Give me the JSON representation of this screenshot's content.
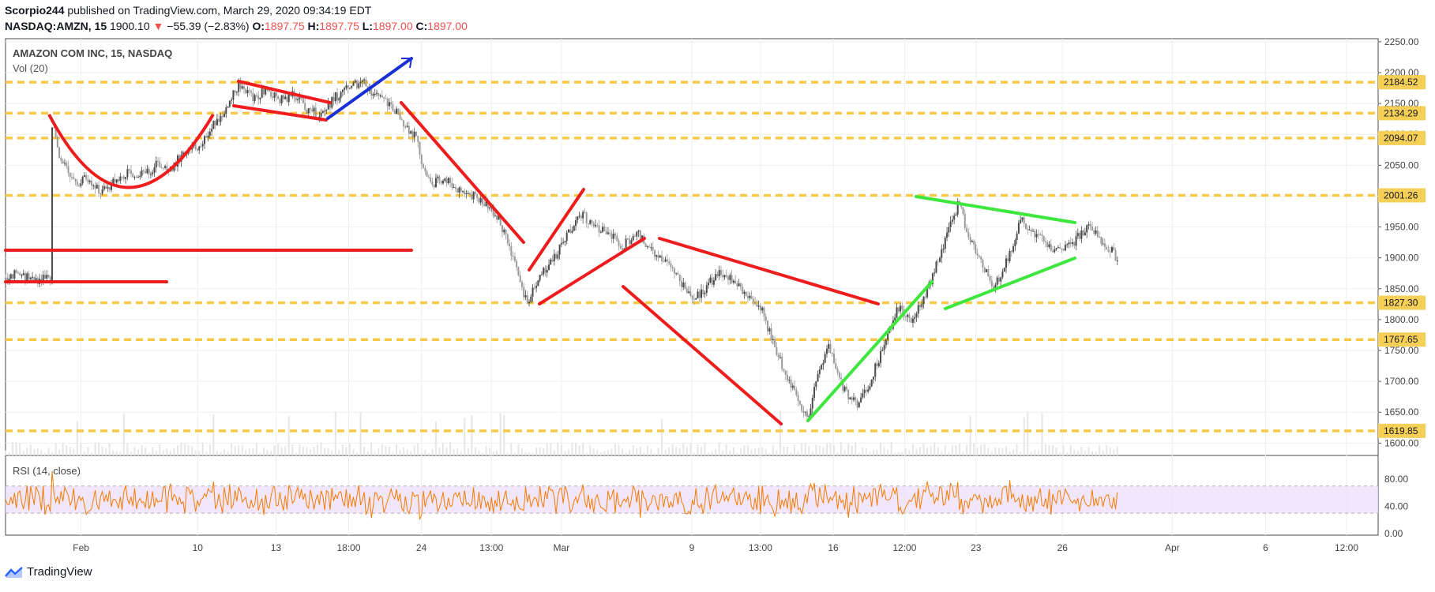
{
  "header": {
    "author": "Scorpio244",
    "published_text": "published on TradingView.com, March 29, 2020 09:34:19 EDT",
    "symbol": "NASDAQ:AMZN, 15",
    "last": "1900.10",
    "change": "−55.39 (−2.83%)",
    "o_label": "O:",
    "o_val": "1897.75",
    "h_label": "H:",
    "h_val": "1897.75",
    "l_label": "L:",
    "l_val": "1897.00",
    "c_label": "C:",
    "c_val": "1897.00"
  },
  "footer": {
    "brand": "TradingView"
  },
  "chart_data": {
    "type": "candlestick",
    "title": "AMAZON COM INC, 15, NASDAQ",
    "volume_label": "Vol (20)",
    "ylim": [
      1580,
      2255
    ],
    "y_ticks": [
      1600,
      1650,
      1700,
      1750,
      1800,
      1850,
      1900,
      1950,
      2000,
      2050,
      2100,
      2150,
      2200,
      2250
    ],
    "x_ticks": [
      {
        "label": "Feb",
        "i": 0.055
      },
      {
        "label": "10",
        "i": 0.14
      },
      {
        "label": "13",
        "i": 0.197
      },
      {
        "label": "18:00",
        "i": 0.25
      },
      {
        "label": "24",
        "i": 0.303
      },
      {
        "label": "13:00",
        "i": 0.354
      },
      {
        "label": "Mar",
        "i": 0.405
      },
      {
        "label": "9",
        "i": 0.5
      },
      {
        "label": "13:00",
        "i": 0.55
      },
      {
        "label": "16",
        "i": 0.603
      },
      {
        "label": "12:00",
        "i": 0.655
      },
      {
        "label": "23",
        "i": 0.707
      },
      {
        "label": "26",
        "i": 0.77
      },
      {
        "label": "Apr",
        "i": 0.85
      },
      {
        "label": "6",
        "i": 0.918
      },
      {
        "label": "12:00",
        "i": 0.977
      }
    ],
    "price_series": [
      [
        0,
        1868
      ],
      [
        0.01,
        1875
      ],
      [
        0.02,
        1862
      ],
      [
        0.03,
        1872
      ],
      [
        0.033,
        1866
      ],
      [
        0.034,
        2125
      ],
      [
        0.04,
        2060
      ],
      [
        0.05,
        2020
      ],
      [
        0.06,
        2030
      ],
      [
        0.07,
        2005
      ],
      [
        0.08,
        2025
      ],
      [
        0.09,
        2040
      ],
      [
        0.1,
        2035
      ],
      [
        0.11,
        2050
      ],
      [
        0.12,
        2045
      ],
      [
        0.13,
        2070
      ],
      [
        0.14,
        2080
      ],
      [
        0.15,
        2110
      ],
      [
        0.16,
        2140
      ],
      [
        0.17,
        2180
      ],
      [
        0.18,
        2160
      ],
      [
        0.19,
        2170
      ],
      [
        0.2,
        2155
      ],
      [
        0.21,
        2165
      ],
      [
        0.22,
        2140
      ],
      [
        0.23,
        2130
      ],
      [
        0.24,
        2160
      ],
      [
        0.25,
        2175
      ],
      [
        0.26,
        2185
      ],
      [
        0.27,
        2160
      ],
      [
        0.28,
        2150
      ],
      [
        0.29,
        2120
      ],
      [
        0.3,
        2090
      ],
      [
        0.305,
        2040
      ],
      [
        0.31,
        2020
      ],
      [
        0.32,
        2030
      ],
      [
        0.33,
        2010
      ],
      [
        0.34,
        2000
      ],
      [
        0.35,
        1990
      ],
      [
        0.36,
        1960
      ],
      [
        0.37,
        1900
      ],
      [
        0.375,
        1855
      ],
      [
        0.38,
        1830
      ],
      [
        0.39,
        1870
      ],
      [
        0.4,
        1900
      ],
      [
        0.41,
        1940
      ],
      [
        0.42,
        1970
      ],
      [
        0.43,
        1950
      ],
      [
        0.44,
        1940
      ],
      [
        0.45,
        1920
      ],
      [
        0.46,
        1940
      ],
      [
        0.47,
        1910
      ],
      [
        0.48,
        1895
      ],
      [
        0.49,
        1870
      ],
      [
        0.5,
        1830
      ],
      [
        0.51,
        1850
      ],
      [
        0.52,
        1880
      ],
      [
        0.53,
        1860
      ],
      [
        0.54,
        1840
      ],
      [
        0.55,
        1820
      ],
      [
        0.56,
        1760
      ],
      [
        0.57,
        1700
      ],
      [
        0.58,
        1660
      ],
      [
        0.585,
        1640
      ],
      [
        0.59,
        1700
      ],
      [
        0.6,
        1760
      ],
      [
        0.61,
        1690
      ],
      [
        0.62,
        1660
      ],
      [
        0.63,
        1700
      ],
      [
        0.64,
        1760
      ],
      [
        0.65,
        1820
      ],
      [
        0.66,
        1800
      ],
      [
        0.67,
        1840
      ],
      [
        0.68,
        1900
      ],
      [
        0.69,
        1960
      ],
      [
        0.695,
        1995
      ],
      [
        0.7,
        1940
      ],
      [
        0.71,
        1900
      ],
      [
        0.72,
        1850
      ],
      [
        0.73,
        1900
      ],
      [
        0.74,
        1960
      ],
      [
        0.75,
        1940
      ],
      [
        0.76,
        1920
      ],
      [
        0.77,
        1910
      ],
      [
        0.78,
        1930
      ],
      [
        0.79,
        1955
      ],
      [
        0.8,
        1925
      ],
      [
        0.81,
        1900
      ]
    ],
    "horizontal_levels": [
      {
        "value": 2184.52,
        "label": "2184.52",
        "dashed": true
      },
      {
        "value": 2134.29,
        "label": "2134.29",
        "dashed": true
      },
      {
        "value": 2094.07,
        "label": "2094.07",
        "dashed": true
      },
      {
        "value": 2001.26,
        "label": "2001.26",
        "dashed": true
      },
      {
        "value": 1827.3,
        "label": "1827.30",
        "dashed": true
      },
      {
        "value": 1767.65,
        "label": "1767.65",
        "dashed": true
      },
      {
        "value": 1619.85,
        "label": "1619.85",
        "dashed": true
      },
      {
        "value": 1910,
        "label": "",
        "dashed": false
      },
      {
        "value": 1857,
        "label": "",
        "dashed": false
      }
    ],
    "colors": {
      "level_line": "#f7c948",
      "level_tag": "#f6cf57",
      "trend_red": "#ee1c1c",
      "trend_green": "#3de73d",
      "trend_blue": "#1a2fd6",
      "candle": "#555555",
      "rsi_line": "#f57c00",
      "rsi_band": "#ede0fb"
    },
    "rsi": {
      "label": "RSI (14, close)",
      "ylim": [
        0,
        100
      ],
      "y_ticks": [
        0,
        40,
        80
      ],
      "upper": 70,
      "lower": 30
    }
  }
}
